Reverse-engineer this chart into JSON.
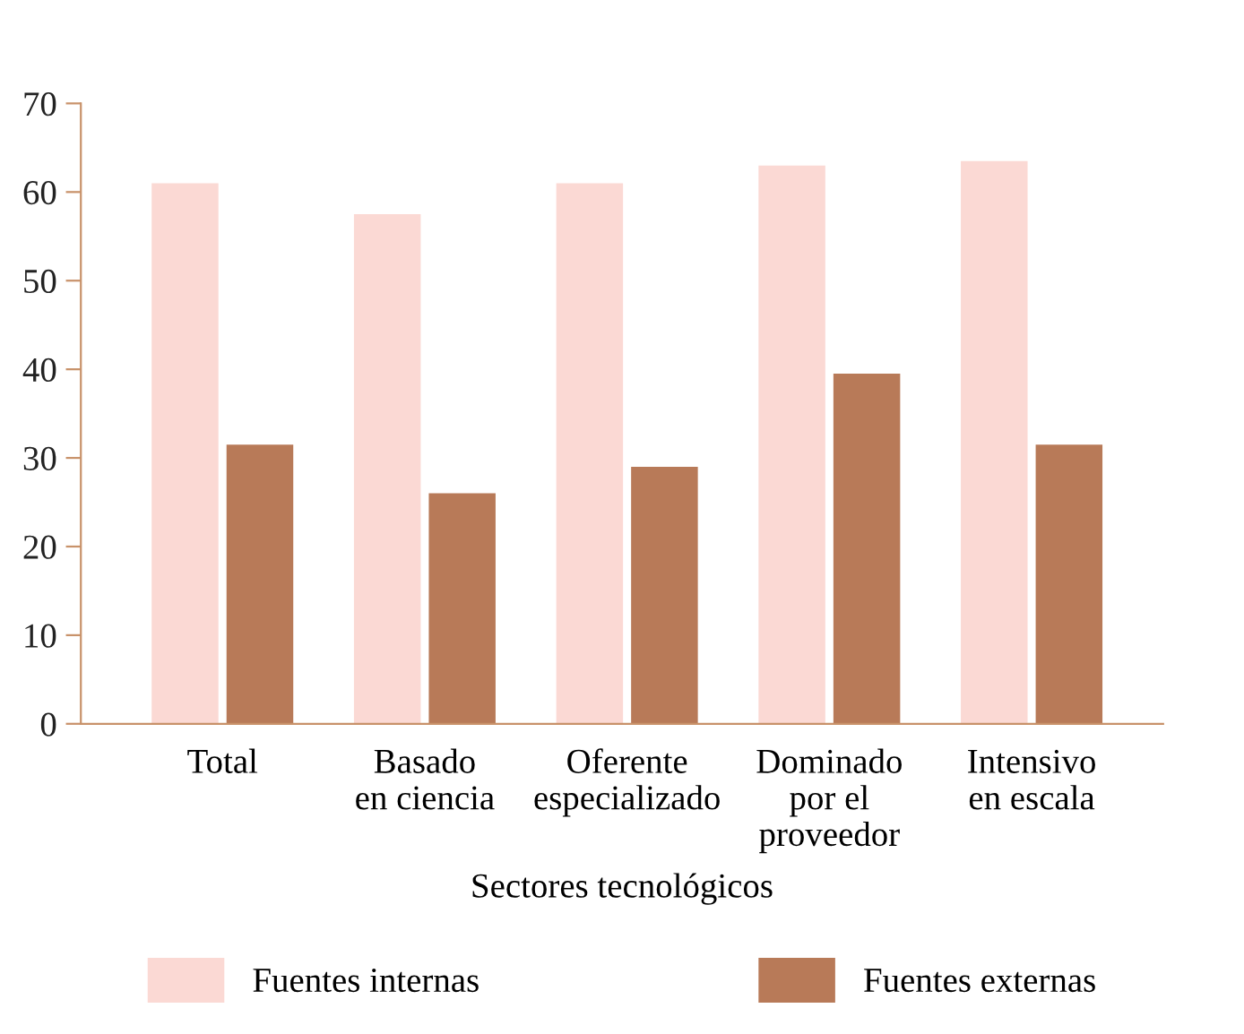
{
  "chart_data": {
    "type": "bar",
    "xlabel": "Sectores tecnológicos",
    "categories": [
      "Total",
      "Basado\nen ciencia",
      "Oferente\nespecializado",
      "Dominado\npor el\nproveedor",
      "Intensivo\nen escala"
    ],
    "series": [
      {
        "name": "Fuentes internas",
        "color": "#fbd9d4",
        "values": [
          61,
          57.5,
          61,
          63,
          63.5
        ]
      },
      {
        "name": "Fuentes externas",
        "color": "#b87a58",
        "values": [
          31.5,
          26,
          29,
          39.5,
          31.5
        ]
      }
    ],
    "ylim": [
      0,
      70
    ],
    "yticks": [
      0,
      10,
      20,
      30,
      40,
      50,
      60,
      70
    ],
    "grid": false,
    "legend": "bottom"
  }
}
